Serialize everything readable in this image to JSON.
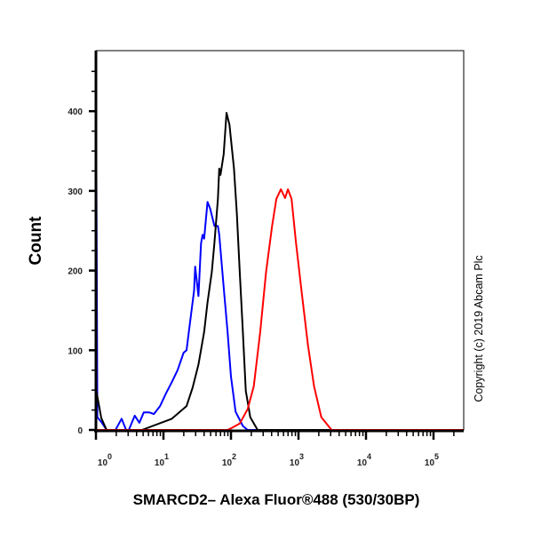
{
  "chart_data": {
    "type": "line",
    "title": "",
    "xlabel": "SMARCD2– Alexa Fluor®488 (530/30BP)",
    "ylabel": "Count",
    "x_scale": "log",
    "xlim": [
      1,
      280000
    ],
    "ylim": [
      0,
      476
    ],
    "grid": false,
    "x_ticks": [
      {
        "value": 1,
        "base": "10",
        "exp": "0"
      },
      {
        "value": 10,
        "base": "10",
        "exp": "1"
      },
      {
        "value": 100,
        "base": "10",
        "exp": "2"
      },
      {
        "value": 1000,
        "base": "10",
        "exp": "3"
      },
      {
        "value": 10000,
        "base": "10",
        "exp": "4"
      },
      {
        "value": 100000,
        "base": "10",
        "exp": "5"
      }
    ],
    "y_ticks": [
      {
        "value": 0,
        "label": "0"
      },
      {
        "value": 100,
        "label": "100"
      },
      {
        "value": 200,
        "label": "200"
      },
      {
        "value": 300,
        "label": "300"
      },
      {
        "value": 400,
        "label": "400"
      }
    ],
    "annotation": "Copyright (c) 2019 Abcam Plc",
    "series": [
      {
        "color": "#0000ff",
        "x": [
          1.0,
          1.05,
          1.2,
          1.44,
          1.95,
          2.4,
          2.8,
          3.07,
          3.76,
          4.4,
          5.1,
          6.2,
          7.2,
          8.9,
          10.8,
          13.3,
          16.2,
          19.9,
          22,
          24,
          28.4,
          29.5,
          33,
          36,
          38,
          40,
          45,
          49,
          57,
          64,
          67,
          78,
          89,
          100,
          117,
          150,
          176,
          280000
        ],
        "y": [
          458,
          16,
          10,
          0,
          0,
          14,
          0,
          0,
          18,
          9,
          22,
          22,
          20,
          30,
          45,
          60,
          75,
          97,
          100,
          126,
          175,
          205,
          168,
          234,
          245,
          240,
          286,
          278,
          256,
          256,
          245,
          179,
          123,
          67,
          23,
          5,
          0,
          0
        ]
      },
      {
        "color": "#000000",
        "x": [
          1.0,
          1.2,
          1.44,
          4.8,
          13.3,
          22,
          27,
          33,
          40,
          45,
          52,
          57,
          64,
          67,
          70,
          78,
          86,
          95,
          111,
          122,
          135,
          150,
          166,
          193,
          248,
          280000
        ],
        "y": [
          52,
          15,
          0,
          0,
          14,
          30,
          53,
          82,
          123,
          160,
          198,
          235,
          290,
          328,
          320,
          346,
          398,
          383,
          328,
          272,
          198,
          123,
          49,
          16,
          0,
          0
        ]
      },
      {
        "color": "#ff0000",
        "x": [
          1.0,
          89,
          100,
          135,
          176,
          218,
          271,
          331,
          407,
          470,
          549,
          633,
          697,
          790,
          920,
          1120,
          1380,
          1700,
          2180,
          3100,
          280000
        ],
        "y": [
          0,
          0,
          2,
          8,
          26,
          55,
          123,
          198,
          256,
          290,
          302,
          291,
          302,
          290,
          235,
          172,
          107,
          55,
          16,
          0,
          0
        ]
      }
    ]
  }
}
